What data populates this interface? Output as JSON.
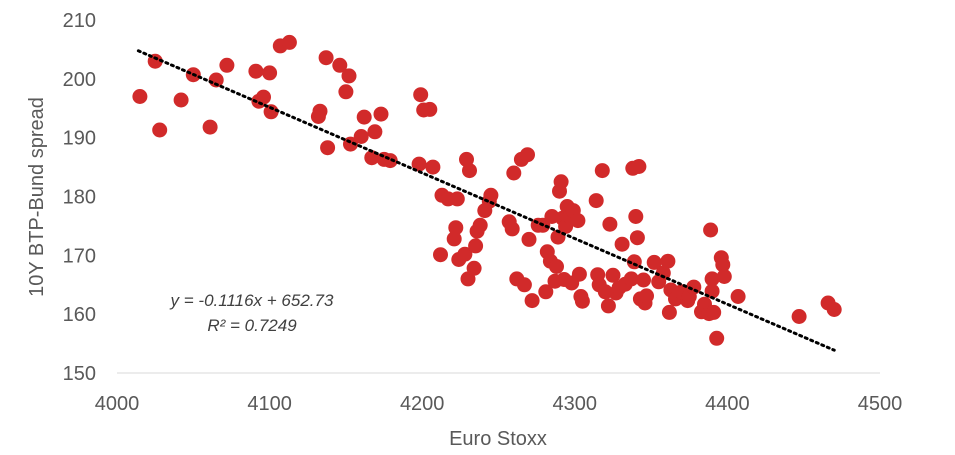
{
  "chart_data": {
    "type": "scatter",
    "xlabel": "Euro Stoxx",
    "ylabel": "10Y BTP-Bund spread",
    "xlim": [
      4000,
      4500
    ],
    "ylim": [
      150,
      210
    ],
    "xticks": [
      "4000",
      "4100",
      "4200",
      "4300",
      "4400",
      "4500"
    ],
    "yticks": [
      "150",
      "160",
      "170",
      "180",
      "190",
      "200",
      "210"
    ],
    "grid": false,
    "point_color": "#d12a2a",
    "trendline": {
      "slope": -0.1116,
      "intercept": 652.73,
      "x_range": [
        4014,
        4470
      ],
      "style": "dotted",
      "color": "#000000"
    },
    "equation_text": "y = -0.1116x + 652.73",
    "r2_text": "R² = 0.7249",
    "points": [
      [
        4015,
        197
      ],
      [
        4025,
        203
      ],
      [
        4028,
        191.3
      ],
      [
        4042,
        196.4
      ],
      [
        4050,
        200.7
      ],
      [
        4061,
        191.8
      ],
      [
        4065,
        199.8
      ],
      [
        4072,
        202.3
      ],
      [
        4091,
        201.3
      ],
      [
        4093,
        196.2
      ],
      [
        4096,
        196.9
      ],
      [
        4100,
        201
      ],
      [
        4101,
        194.4
      ],
      [
        4107,
        205.6
      ],
      [
        4113,
        206.2
      ],
      [
        4132,
        193.6
      ],
      [
        4133,
        194.5
      ],
      [
        4137,
        203.6
      ],
      [
        4138,
        188.3
      ],
      [
        4146,
        202.3
      ],
      [
        4150,
        197.8
      ],
      [
        4152,
        200.5
      ],
      [
        4153,
        188.9
      ],
      [
        4160,
        190.2
      ],
      [
        4162,
        193.5
      ],
      [
        4167,
        186.6
      ],
      [
        4169,
        191
      ],
      [
        4173,
        194
      ],
      [
        4175,
        186.3
      ],
      [
        4179,
        186.1
      ],
      [
        4198,
        185.5
      ],
      [
        4199,
        197.3
      ],
      [
        4201,
        194.7
      ],
      [
        4205,
        194.8
      ],
      [
        4207,
        185
      ],
      [
        4212,
        170.1
      ],
      [
        4213,
        180.2
      ],
      [
        4217,
        179.6
      ],
      [
        4221,
        172.8
      ],
      [
        4222,
        174.7
      ],
      [
        4223,
        179.6
      ],
      [
        4224,
        169.3
      ],
      [
        4228,
        170.2
      ],
      [
        4229,
        186.3
      ],
      [
        4230,
        166
      ],
      [
        4231,
        184.4
      ],
      [
        4234,
        167.8
      ],
      [
        4235,
        171.6
      ],
      [
        4236,
        174.1
      ],
      [
        4238,
        175.1
      ],
      [
        4241,
        177.6
      ],
      [
        4244,
        179.2
      ],
      [
        4245,
        180.2
      ],
      [
        4257,
        175.7
      ],
      [
        4259,
        174.5
      ],
      [
        4260,
        184
      ],
      [
        4262,
        166
      ],
      [
        4265,
        186.3
      ],
      [
        4267,
        165
      ],
      [
        4269,
        187.1
      ],
      [
        4270,
        172.7
      ],
      [
        4272,
        162.3
      ],
      [
        4276,
        175.1
      ],
      [
        4279,
        175.1
      ],
      [
        4281,
        163.8
      ],
      [
        4282,
        170.6
      ],
      [
        4284,
        169
      ],
      [
        4285,
        176.6
      ],
      [
        4287,
        165.6
      ],
      [
        4288,
        168.1
      ],
      [
        4289,
        173.1
      ],
      [
        4290,
        180.9
      ],
      [
        4291,
        182.5
      ],
      [
        4292,
        176.3
      ],
      [
        4293,
        165.9
      ],
      [
        4294,
        174.9
      ],
      [
        4295,
        178.3
      ],
      [
        4297,
        176.6
      ],
      [
        4298,
        165.3
      ],
      [
        4299,
        177.6
      ],
      [
        4302,
        175.9
      ],
      [
        4303,
        166.8
      ],
      [
        4304,
        163
      ],
      [
        4305,
        162.2
      ],
      [
        4314,
        179.3
      ],
      [
        4315,
        166.7
      ],
      [
        4316,
        165
      ],
      [
        4318,
        184.4
      ],
      [
        4320,
        163.8
      ],
      [
        4322,
        161.4
      ],
      [
        4323,
        175.3
      ],
      [
        4325,
        166.6
      ],
      [
        4327,
        163.6
      ],
      [
        4329,
        164.5
      ],
      [
        4331,
        171.9
      ],
      [
        4333,
        165.1
      ],
      [
        4337,
        166
      ],
      [
        4338,
        184.8
      ],
      [
        4339,
        168.9
      ],
      [
        4340,
        176.6
      ],
      [
        4341,
        173
      ],
      [
        4342,
        185.1
      ],
      [
        4343,
        162.6
      ],
      [
        4345,
        165.8
      ],
      [
        4346,
        161.9
      ],
      [
        4347,
        163.1
      ],
      [
        4352,
        168.8
      ],
      [
        4355,
        165.5
      ],
      [
        4358,
        167
      ],
      [
        4361,
        169
      ],
      [
        4362,
        160.3
      ],
      [
        4363,
        164.1
      ],
      [
        4366,
        162.6
      ],
      [
        4370,
        163.8
      ],
      [
        4374,
        162.3
      ],
      [
        4375,
        163
      ],
      [
        4378,
        164.6
      ],
      [
        4383,
        160.4
      ],
      [
        4385,
        161.7
      ],
      [
        4388,
        160.1
      ],
      [
        4389,
        174.3
      ],
      [
        4390,
        163.9
      ],
      [
        4390,
        166
      ],
      [
        4391,
        160.3
      ],
      [
        4393,
        155.9
      ],
      [
        4396,
        169.6
      ],
      [
        4397,
        168.4
      ],
      [
        4398,
        166.4
      ],
      [
        4407,
        163
      ],
      [
        4447,
        159.6
      ],
      [
        4466,
        161.9
      ],
      [
        4470,
        160.8
      ]
    ]
  }
}
